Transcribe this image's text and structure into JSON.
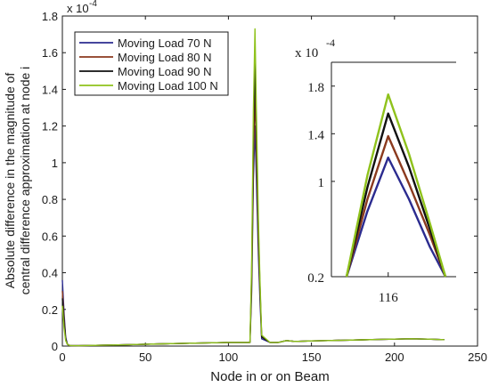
{
  "chart_data": {
    "type": "line",
    "xlabel": "Node in or on Beam",
    "ylabel_line1": "Absolute difference in the magnitude of",
    "ylabel_line2": "central difference approximation at node i",
    "y_exponent": "x 10",
    "y_exponent_power": "-4",
    "xlim": [
      0,
      250
    ],
    "ylim": [
      0,
      1.8
    ],
    "x_ticks": [
      "0",
      "50",
      "100",
      "150",
      "200",
      "250"
    ],
    "y_ticks": [
      "0",
      "0.2",
      "0.4",
      "0.6",
      "0.8",
      "1",
      "1.2",
      "1.4",
      "1.6",
      "1.8"
    ],
    "grid": false,
    "legend_position": "top-left",
    "x": [
      0,
      1,
      2,
      3,
      4,
      5,
      10,
      20,
      30,
      40,
      50,
      60,
      70,
      80,
      90,
      100,
      105,
      110,
      113,
      114,
      115,
      116,
      117,
      118,
      119,
      120,
      125,
      130,
      135,
      140,
      150,
      160,
      170,
      180,
      190,
      200,
      210,
      220,
      230
    ],
    "series": [
      {
        "name": "Moving Load 70 N",
        "color": "#2b2b8f",
        "values": [
          0.36,
          0.18,
          0.05,
          0.01,
          0.005,
          0.003,
          0.002,
          0.004,
          0.006,
          0.008,
          0.01,
          0.012,
          0.014,
          0.016,
          0.018,
          0.02,
          0.02,
          0.02,
          0.02,
          0.3,
          0.9,
          1.2,
          0.85,
          0.5,
          0.25,
          0.04,
          0.02,
          0.02,
          0.03,
          0.025,
          0.028,
          0.03,
          0.032,
          0.034,
          0.036,
          0.038,
          0.04,
          0.038,
          0.035
        ]
      },
      {
        "name": "Moving Load 80 N",
        "color": "#8b3a1e",
        "values": [
          0.3,
          0.15,
          0.04,
          0.01,
          0.005,
          0.003,
          0.002,
          0.004,
          0.006,
          0.008,
          0.01,
          0.012,
          0.014,
          0.016,
          0.018,
          0.02,
          0.02,
          0.02,
          0.02,
          0.35,
          1.0,
          1.38,
          0.98,
          0.58,
          0.3,
          0.05,
          0.02,
          0.02,
          0.03,
          0.025,
          0.028,
          0.03,
          0.032,
          0.034,
          0.036,
          0.038,
          0.04,
          0.038,
          0.035
        ]
      },
      {
        "name": "Moving Load 90 N",
        "color": "#111111",
        "values": [
          0.26,
          0.13,
          0.04,
          0.01,
          0.005,
          0.003,
          0.002,
          0.004,
          0.006,
          0.008,
          0.01,
          0.012,
          0.014,
          0.016,
          0.018,
          0.02,
          0.02,
          0.02,
          0.02,
          0.4,
          1.15,
          1.55,
          1.08,
          0.64,
          0.33,
          0.05,
          0.02,
          0.02,
          0.03,
          0.025,
          0.028,
          0.03,
          0.032,
          0.034,
          0.036,
          0.038,
          0.04,
          0.038,
          0.035
        ]
      },
      {
        "name": "Moving Load 100 N",
        "color": "#8fc21c",
        "values": [
          0.22,
          0.1,
          0.03,
          0.01,
          0.005,
          0.003,
          0.002,
          0.004,
          0.006,
          0.008,
          0.01,
          0.012,
          0.014,
          0.016,
          0.018,
          0.02,
          0.02,
          0.02,
          0.02,
          0.45,
          1.28,
          1.73,
          1.2,
          0.7,
          0.36,
          0.06,
          0.02,
          0.02,
          0.03,
          0.025,
          0.028,
          0.03,
          0.032,
          0.034,
          0.036,
          0.038,
          0.04,
          0.038,
          0.035
        ]
      }
    ],
    "inset": {
      "y_exponent": "x 10",
      "y_exponent_power": "-4",
      "ylim": [
        0.2,
        2.0
      ],
      "y_ticks": [
        "0.2",
        "1",
        "1.4",
        "1.8"
      ],
      "x_ticks": [
        "116"
      ],
      "x": [
        112,
        114,
        116,
        118,
        120,
        121.5
      ],
      "series": [
        {
          "name": "Moving Load 70 N",
          "color": "#2b2b8f",
          "values": [
            0.2,
            0.75,
            1.2,
            0.85,
            0.45,
            0.2
          ]
        },
        {
          "name": "Moving Load 80 N",
          "color": "#8b3a1e",
          "values": [
            0.2,
            0.85,
            1.38,
            0.98,
            0.55,
            0.2
          ]
        },
        {
          "name": "Moving Load 90 N",
          "color": "#111111",
          "values": [
            0.2,
            0.95,
            1.57,
            1.12,
            0.6,
            0.2
          ]
        },
        {
          "name": "Moving Load 100 N",
          "color": "#8fc21c",
          "values": [
            0.2,
            1.05,
            1.73,
            1.23,
            0.65,
            0.2
          ]
        }
      ]
    }
  }
}
